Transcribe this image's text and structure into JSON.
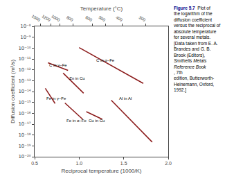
{
  "chart_data": {
    "type": "line",
    "log": "y",
    "grid": false,
    "color": "#8B1A1A",
    "xlabel": "Reciprocal temperature (1000/K)",
    "ylabel": "Diffusion coefficient (m²/s)",
    "x2label": "Temperature (°C)",
    "xlim": [
      0.5,
      2.0
    ],
    "xticks": [
      0.5,
      {
        "value": 1,
        "label": "1.0"
      },
      1.5,
      {
        "value": 2,
        "label": "2.0"
      }
    ],
    "x2lim": [
      0.5,
      2.0
    ],
    "x2ticks": [
      {
        "value": 0.563968,
        "label": "1500"
      },
      {
        "value": 0.678818,
        "label": "1200"
      },
      {
        "value": 0.785453,
        "label": "1000"
      },
      {
        "value": 0.931836,
        "label": "800"
      },
      {
        "value": 1.145279,
        "label": "600"
      },
      {
        "value": 1.29341,
        "label": "500"
      },
      {
        "value": 1.485553,
        "label": "400"
      },
      {
        "value": 1.744744,
        "label": "300"
      }
    ],
    "ylim": [
      1e-20,
      1e-08
    ],
    "yticks": [
      {
        "value": 1e-20,
        "label": "10⁻²⁰"
      },
      {
        "value": 1e-19,
        "label": "10⁻¹⁹"
      },
      {
        "value": 1e-18,
        "label": "10⁻¹⁸"
      },
      {
        "value": 1e-17,
        "label": "10⁻¹⁷"
      },
      {
        "value": 1e-16,
        "label": "10⁻¹⁶"
      },
      {
        "value": 1e-15,
        "label": "10⁻¹⁵"
      },
      {
        "value": 1e-14,
        "label": "10⁻¹⁴"
      },
      {
        "value": 1e-13,
        "label": "10⁻¹³"
      },
      {
        "value": 1e-12,
        "label": "10⁻¹²"
      },
      {
        "value": 1e-11,
        "label": "10⁻¹¹"
      },
      {
        "value": 1e-10,
        "label": "10⁻¹⁰"
      },
      {
        "value": 1e-09,
        "label": "10⁻⁹"
      },
      {
        "value": 1e-08,
        "label": "10⁻⁸"
      }
    ],
    "series": [
      {
        "x": [
          0.65,
          0.875
        ],
        "values": [
          4.466835921509635e-12,
          8.912509381337456e-13
        ]
      },
      {
        "x": [
          1.0,
          1.72
        ],
        "values": [
          1.1220184543019633e-10,
          5.623413251903491e-14
        ]
      },
      {
        "x": [
          0.82,
          1.05
        ],
        "values": [
          5.011872336272722e-13,
          7.079457843841381e-15
        ]
      },
      {
        "x": [
          0.62,
          0.73
        ],
        "values": [
          1.9952623149688797e-14,
          7.943282347242815e-16
        ]
      },
      {
        "x": [
          0.84,
          1.04
        ],
        "values": [
          8.912509381337457e-16,
          2.8183829312644536e-17
        ]
      },
      {
        "x": [
          1.08,
          1.26
        ],
        "values": [
          1.4125375446227545e-16,
          2.8183829312644536e-17
        ]
      },
      {
        "x": [
          1.36,
          1.82
        ],
        "values": [
          1.5848931924611133e-15,
          2.2387211385683396e-19
        ]
      }
    ],
    "annotations": [
      {
        "text": "C in γ–Fe",
        "x": 0.65,
        "y": 2.8183829312644537e-12
      },
      {
        "text": "C in α–Fe",
        "x": 1.18,
        "y": 7.079457843841381e-12
      },
      {
        "text": "Zn in Cu",
        "x": 0.875,
        "y": 1.5848931924611134e-13
      },
      {
        "text": "Fe in γ–Fe",
        "x": 0.62,
        "y": 2.2387211385683397e-15
      },
      {
        "text": "Fe in α–Fe",
        "x": 0.84,
        "y": 2.2387211385683396e-17
      },
      {
        "text": "Cu in Cu",
        "x": 1.09,
        "y": 1.9952623149688797e-17
      },
      {
        "text": "Al in Al",
        "x": 1.43,
        "y": 2.2387211385683397e-15
      }
    ],
    "caption": {
      "title": "Figure 5.7",
      "color": "#00008B",
      "lines": [
        {
          "text": "  Plot of"
        },
        {
          "text": "the logarithm of the"
        },
        {
          "text": "diffusion coefficient"
        },
        {
          "text": "versus the reciprocal of"
        },
        {
          "text": "absolute temperature"
        },
        {
          "text": "for several metals."
        },
        {
          "text": "[Data taken from E. A."
        },
        {
          "text": "Brandes and G. B."
        },
        {
          "text": "Brook (Editors),"
        },
        {
          "text": "Smithells Metals",
          "italic": true
        },
        {
          "text": "Reference Book",
          "italic": true
        },
        {
          "text": ", 7th"
        },
        {
          "text": "edition, Butterworth-"
        },
        {
          "text": "Heinemann, Oxford,"
        },
        {
          "text": "1992.]"
        }
      ]
    }
  }
}
